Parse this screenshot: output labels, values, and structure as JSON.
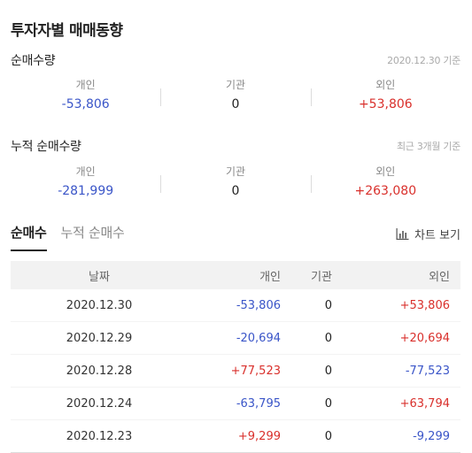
{
  "title": "투자자별 매매동향",
  "net_volume": {
    "title": "순매수량",
    "note": "2020.12.30 기준",
    "stats": [
      {
        "label": "개인",
        "value": "-53,806",
        "sign": "neg"
      },
      {
        "label": "기관",
        "value": "0",
        "sign": "zero"
      },
      {
        "label": "외인",
        "value": "+53,806",
        "sign": "pos"
      }
    ]
  },
  "cumulative_volume": {
    "title": "누적 순매수량",
    "note": "최근 3개월 기준",
    "stats": [
      {
        "label": "개인",
        "value": "-281,999",
        "sign": "neg"
      },
      {
        "label": "기관",
        "value": "0",
        "sign": "zero"
      },
      {
        "label": "외인",
        "value": "+263,080",
        "sign": "pos"
      }
    ]
  },
  "tabs": [
    {
      "label": "순매수",
      "active": true
    },
    {
      "label": "누적 순매수",
      "active": false
    }
  ],
  "chart_button": {
    "label": "차트 보기",
    "icon": "bar-chart-icon"
  },
  "table": {
    "headers": {
      "date": "날짜",
      "individual": "개인",
      "institution": "기관",
      "foreign": "외인"
    },
    "rows": [
      {
        "date": "2020.12.30",
        "individual": "-53,806",
        "institution": "0",
        "foreign": "+53,806"
      },
      {
        "date": "2020.12.29",
        "individual": "-20,694",
        "institution": "0",
        "foreign": "+20,694"
      },
      {
        "date": "2020.12.28",
        "individual": "+77,523",
        "institution": "0",
        "foreign": "-77,523"
      },
      {
        "date": "2020.12.24",
        "individual": "-63,795",
        "institution": "0",
        "foreign": "+63,794"
      },
      {
        "date": "2020.12.23",
        "individual": "+9,299",
        "institution": "0",
        "foreign": "-9,299"
      }
    ]
  },
  "colors": {
    "negative": "#3a55c8",
    "positive": "#d9302c",
    "header_bg": "#f2f2f2"
  }
}
